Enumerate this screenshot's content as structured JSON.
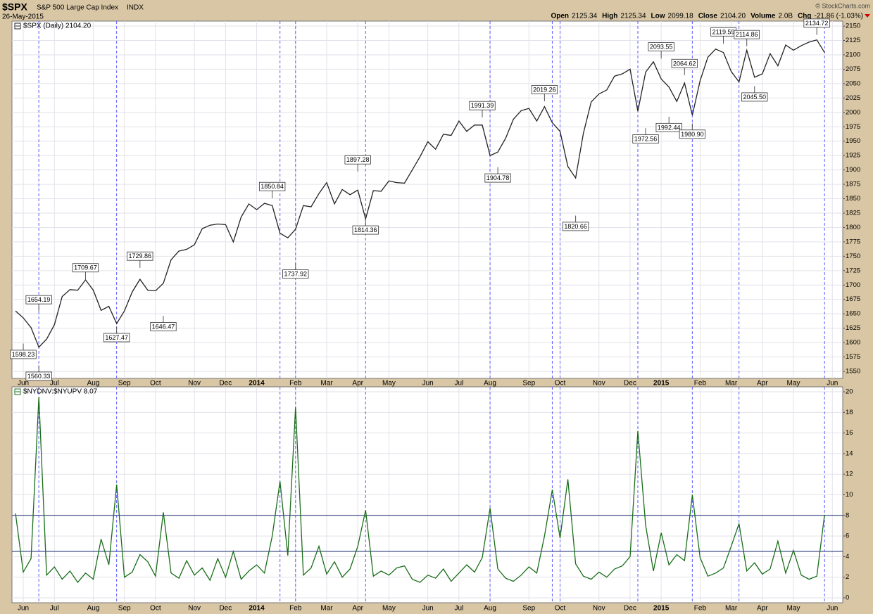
{
  "header": {
    "symbol": "$SPX",
    "name": "S&P 500 Large Cap Index",
    "exchange": "INDX",
    "date": "26-May-2015",
    "source": "© StockCharts.com",
    "quote": [
      {
        "label": "Open",
        "value": "2125.34"
      },
      {
        "label": "High",
        "value": "2125.34"
      },
      {
        "label": "Low",
        "value": "2099.18"
      },
      {
        "label": "Close",
        "value": "2104.20"
      },
      {
        "label": "Volume",
        "value": "2.0B"
      },
      {
        "label": "Chg",
        "value": "-21.86 (-1.03%)"
      }
    ]
  },
  "chart_data": [
    {
      "type": "line",
      "legend": "$SPX (Daily) 2104.20",
      "grid": true,
      "color": "#222222",
      "categories": [
        null,
        "Jun",
        null,
        null,
        null,
        "Jul",
        null,
        null,
        null,
        null,
        "Aug",
        null,
        null,
        null,
        "Sep",
        null,
        null,
        null,
        "Oct",
        null,
        null,
        null,
        null,
        "Nov",
        null,
        null,
        null,
        "Dec",
        null,
        null,
        null,
        "2014",
        null,
        null,
        null,
        null,
        "Feb",
        null,
        null,
        null,
        "Mar",
        null,
        null,
        null,
        "Apr",
        null,
        null,
        null,
        "May",
        null,
        null,
        null,
        null,
        "Jun",
        null,
        null,
        null,
        "Jul",
        null,
        null,
        null,
        "Aug",
        null,
        null,
        null,
        null,
        "Sep",
        null,
        null,
        null,
        "Oct",
        null,
        null,
        null,
        null,
        "Nov",
        null,
        null,
        null,
        "Dec",
        null,
        null,
        null,
        "2015",
        null,
        null,
        null,
        null,
        "Feb",
        null,
        null,
        null,
        "Mar",
        null,
        null,
        null,
        "Apr",
        null,
        null,
        null,
        "May",
        null,
        null,
        null,
        null,
        "Jun"
      ],
      "values": [
        1655,
        1643,
        1626,
        1592,
        1606,
        1631,
        1680,
        1692,
        1691,
        1709,
        1691,
        1656,
        1663,
        1633,
        1655,
        1688,
        1710,
        1691,
        1690,
        1703,
        1744,
        1759,
        1762,
        1770,
        1798,
        1804,
        1806,
        1805,
        1775,
        1818,
        1841,
        1831,
        1842,
        1838,
        1790,
        1782,
        1797,
        1838,
        1836,
        1859,
        1878,
        1841,
        1866,
        1857,
        1865,
        1815,
        1864,
        1863,
        1881,
        1878,
        1877,
        1900,
        1923,
        1949,
        1936,
        1962,
        1960,
        1985,
        1967,
        1978,
        1978,
        1925,
        1931,
        1955,
        1988,
        2003,
        2007,
        1985,
        2010,
        1982,
        1967,
        1906,
        1886,
        1964,
        2018,
        2032,
        2039,
        2063,
        2067,
        2075,
        2002,
        2070,
        2088,
        2058,
        2044,
        2019,
        2051,
        1995,
        2055,
        2096,
        2110,
        2104,
        2071,
        2053,
        2108,
        2061,
        2067,
        2102,
        2081,
        2117,
        2108,
        2116,
        2122,
        2126,
        2104,
        null
      ],
      "ylim": [
        1537.8,
        2158.6
      ],
      "yticks": [
        1550,
        1575,
        1600,
        1625,
        1650,
        1675,
        1700,
        1725,
        1750,
        1775,
        1800,
        1825,
        1850,
        1875,
        1900,
        1925,
        1950,
        1975,
        2000,
        2025,
        2050,
        2075,
        2100,
        2125,
        2150
      ],
      "event_lines": [
        3,
        13,
        34,
        36,
        45,
        61,
        69,
        70,
        80,
        87,
        93,
        104
      ],
      "annotations": [
        {
          "x": 1,
          "side": "below",
          "value": 1598.23
        },
        {
          "x": 3,
          "side": "above",
          "value": 1654.19
        },
        {
          "x": 3,
          "side": "below",
          "value": 1560.33
        },
        {
          "x": 9,
          "side": "above",
          "value": 1709.67
        },
        {
          "x": 13,
          "side": "below",
          "value": 1627.47
        },
        {
          "x": 16,
          "side": "above",
          "value": 1729.86
        },
        {
          "x": 19,
          "side": "below",
          "value": 1646.47
        },
        {
          "x": 33,
          "side": "above",
          "value": 1850.84
        },
        {
          "x": 36,
          "side": "below",
          "value": 1737.92
        },
        {
          "x": 44,
          "side": "above",
          "value": 1897.28
        },
        {
          "x": 45,
          "side": "below",
          "value": 1814.36
        },
        {
          "x": 60,
          "side": "above",
          "value": 1991.39
        },
        {
          "x": 62,
          "side": "below",
          "value": 1904.78
        },
        {
          "x": 68,
          "side": "above",
          "value": 2019.26
        },
        {
          "x": 72,
          "side": "below",
          "value": 1820.66
        },
        {
          "x": 81,
          "side": "below",
          "value": 1972.56
        },
        {
          "x": 83,
          "side": "above",
          "value": 2093.55
        },
        {
          "x": 84,
          "side": "below",
          "value": 1992.44
        },
        {
          "x": 86,
          "side": "above",
          "value": 2064.62
        },
        {
          "x": 87,
          "side": "below",
          "value": 1980.9,
          "label": "1980.90"
        },
        {
          "x": 91,
          "side": "above",
          "value": 2119.59
        },
        {
          "x": 94,
          "side": "above",
          "value": 2114.86
        },
        {
          "x": 95,
          "side": "below",
          "value": 2045.5,
          "label": "2045.50"
        },
        {
          "x": 103,
          "side": "above",
          "value": 2134.72
        }
      ]
    },
    {
      "type": "line",
      "legend": "$NYDNV:$NYUPV 8.07",
      "grid": true,
      "color": "#1a6e1a",
      "categories": [
        null,
        "Jun",
        null,
        null,
        null,
        "Jul",
        null,
        null,
        null,
        null,
        "Aug",
        null,
        null,
        null,
        "Sep",
        null,
        null,
        null,
        "Oct",
        null,
        null,
        null,
        null,
        "Nov",
        null,
        null,
        null,
        "Dec",
        null,
        null,
        null,
        "2014",
        null,
        null,
        null,
        null,
        "Feb",
        null,
        null,
        null,
        "Mar",
        null,
        null,
        null,
        "Apr",
        null,
        null,
        null,
        "May",
        null,
        null,
        null,
        null,
        "Jun",
        null,
        null,
        null,
        "Jul",
        null,
        null,
        null,
        "Aug",
        null,
        null,
        null,
        null,
        "Sep",
        null,
        null,
        null,
        "Oct",
        null,
        null,
        null,
        null,
        "Nov",
        null,
        null,
        null,
        "Dec",
        null,
        null,
        null,
        "2015",
        null,
        null,
        null,
        null,
        "Feb",
        null,
        null,
        null,
        "Mar",
        null,
        null,
        null,
        "Apr",
        null,
        null,
        null,
        "May",
        null,
        null,
        null,
        null,
        "Jun"
      ],
      "values": [
        8.2,
        2.5,
        3.8,
        19.5,
        2.2,
        3.0,
        1.8,
        2.6,
        1.5,
        2.4,
        1.8,
        5.7,
        3.2,
        11.0,
        2.0,
        2.5,
        4.2,
        3.5,
        2.1,
        8.3,
        2.4,
        1.9,
        3.6,
        2.2,
        2.9,
        1.7,
        3.8,
        2.0,
        4.5,
        1.8,
        2.6,
        3.2,
        2.4,
        6.0,
        11.3,
        4.1,
        18.5,
        2.2,
        2.9,
        5.0,
        2.3,
        3.5,
        2.0,
        2.8,
        5.0,
        8.5,
        2.1,
        2.6,
        2.2,
        2.9,
        3.1,
        1.8,
        1.5,
        2.2,
        1.9,
        2.8,
        1.6,
        2.4,
        3.2,
        2.5,
        3.9,
        8.7,
        2.8,
        1.9,
        1.6,
        2.2,
        3.0,
        2.4,
        6.0,
        10.5,
        5.8,
        11.5,
        3.3,
        2.1,
        1.8,
        2.5,
        2.0,
        2.8,
        3.1,
        4.0,
        16.2,
        7.0,
        2.6,
        6.3,
        3.2,
        4.2,
        3.6,
        10.0,
        3.9,
        2.1,
        2.4,
        2.9,
        5.0,
        7.2,
        2.6,
        3.4,
        2.3,
        2.8,
        5.5,
        2.4,
        4.6,
        2.2,
        1.8,
        2.1,
        8.07,
        null
      ],
      "ylim": [
        -0.48,
        20.48
      ],
      "yticks": [
        0,
        2,
        4,
        6,
        8,
        10,
        12,
        14,
        16,
        18,
        20
      ],
      "hlines": [
        8,
        4.5
      ],
      "event_lines": [
        3,
        13,
        34,
        36,
        45,
        61,
        69,
        70,
        80,
        87,
        93,
        104
      ]
    }
  ]
}
